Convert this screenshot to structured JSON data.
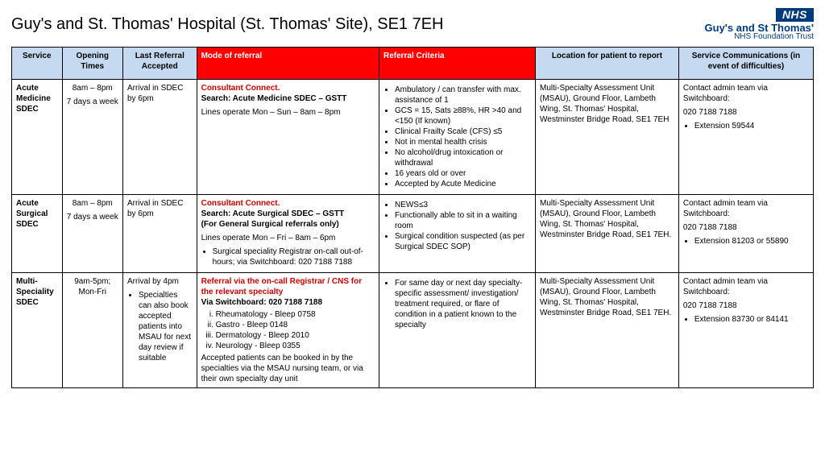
{
  "header": {
    "title": "Guy's and St. Thomas' Hospital (St. Thomas' Site), SE1 7EH",
    "logo_nhs": "NHS",
    "logo_line1": "Guy's and St Thomas'",
    "logo_line2": "NHS Foundation Trust"
  },
  "columns": {
    "service": "Service",
    "times": "Opening Times",
    "last": "Last Referral Accepted",
    "mode": "Mode of referral",
    "criteria": "Referral Criteria",
    "location": "Location for patient to report",
    "comm": "Service Communications (in event of difficulties)"
  },
  "r1": {
    "service": "Acute Medicine SDEC",
    "times_l1": "8am – 8pm",
    "times_l2": "7 days a week",
    "last": "Arrival in SDEC by 6pm",
    "mode_head": "Consultant Connect.",
    "mode_search": "Search: Acute Medicine SDEC – GSTT",
    "mode_lines": "Lines operate Mon – Sun – 8am – 8pm",
    "crit1": "Ambulatory / can transfer with max. assistance of 1",
    "crit2": "GCS = 15, Sats ≥88%, HR >40 and <150 (If known)",
    "crit3": "Clinical Frailty Scale (CFS) ≤5",
    "crit4": "Not in mental health crisis",
    "crit5": "No alcohol/drug intoxication or withdrawal",
    "crit6": "16 years old or over",
    "crit7": "Accepted by Acute Medicine",
    "location": "Multi-Specialty Assessment Unit (MSAU), Ground Floor, Lambeth Wing, St. Thomas' Hospital, Westminster Bridge Road,  SE1 7EH",
    "comm_l1": "Contact admin team via Switchboard:",
    "comm_l2": "020 7188 7188",
    "comm_ext": "Extension 59544"
  },
  "r2": {
    "service": "Acute Surgical SDEC",
    "times_l1": "8am – 8pm",
    "times_l2": "7 days a week",
    "last": "Arrival in SDEC by 6pm",
    "mode_head": "Consultant Connect.",
    "mode_search": "Search: Acute Surgical SDEC – GSTT",
    "mode_note": "(For General Surgical referrals only)",
    "mode_lines": "Lines operate Mon – Fri – 8am – 6pm",
    "mode_bullet": "Surgical speciality Registrar on-call out-of-hours; via Switchboard: 020 7188 7188",
    "crit1": "NEWS≤3",
    "crit2": "Functionally able to sit in a waiting room",
    "crit3": "Surgical condition suspected (as per Surgical SDEC SOP)",
    "location": "Multi-Specialty Assessment Unit (MSAU), Ground Floor, Lambeth Wing, St. Thomas' Hospital, Westminster Bridge Road, SE1 7EH.",
    "comm_l1": "Contact admin team via Switchboard:",
    "comm_l2": "020 7188 7188",
    "comm_ext": "Extension 81203 or 55890"
  },
  "r3": {
    "service": "Multi-Speciality SDEC",
    "times_l1": "9am-5pm; Mon-Fri",
    "last_l1": "Arrival by 4pm",
    "last_b1": "Specialties can also book accepted patients into MSAU for next day review if suitable",
    "mode_head": "Referral via the on-call Registrar / CNS for the relevant specialty",
    "mode_via": "Via Switchboard: 020 7188 7188",
    "mode_o1": "Rheumatology - Bleep 0758",
    "mode_o2": "Gastro - Bleep 0148",
    "mode_o3": "Dermatology - Bleep 2010",
    "mode_o4": "Neurology - Bleep 0355",
    "mode_foot": "Accepted patients can be booked in by the specialties via the MSAU nursing team, or via their own specialty day unit",
    "crit1": "For same day or next day specialty-specific assessment/ investigation/ treatment required, or flare of condition in a patient known to the specialty",
    "location": "Multi-Specialty Assessment Unit (MSAU), Ground Floor, Lambeth Wing, St. Thomas' Hospital, Westminster Bridge Road, SE1 7EH.",
    "comm_l1": "Contact admin team via Switchboard:",
    "comm_l2": "020 7188 7188",
    "comm_ext": "Extension 83730 or 84141"
  }
}
